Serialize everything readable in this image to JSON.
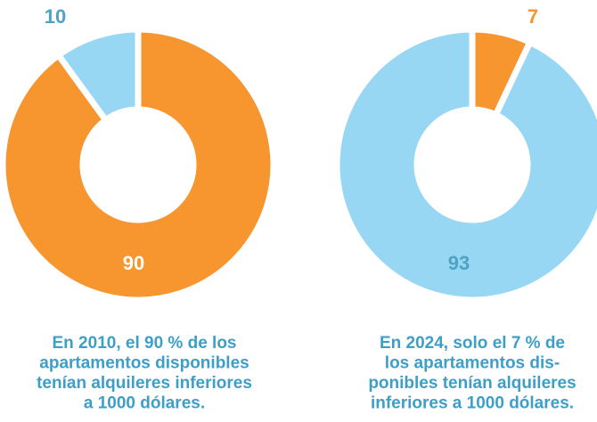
{
  "chart_data": [
    {
      "type": "donut",
      "values": [
        90,
        10
      ],
      "colors": [
        "#f7952f",
        "#97d7f4"
      ],
      "label_colors": [
        "#ffffff",
        "#4fa2c4"
      ],
      "caption": [
        "En 2010, el 90 % de los",
        "apartamentos disponibles",
        "tenían alquileres inferiores",
        "a 1000 dólares."
      ]
    },
    {
      "type": "donut",
      "values": [
        7,
        93
      ],
      "colors": [
        "#f7952f",
        "#97d7f4"
      ],
      "label_colors": [
        "#f7952f",
        "#4fa2c4"
      ],
      "caption": [
        "En 2024, solo el 7 % de",
        "los apartamentos dis-",
        "ponibles tenían alquileres",
        "inferiores a 1000 dólares."
      ]
    }
  ]
}
